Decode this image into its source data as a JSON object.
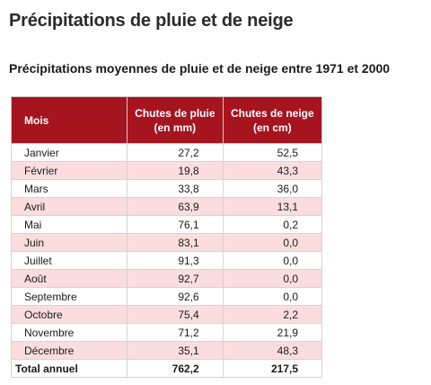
{
  "page": {
    "title": "Précipitations de pluie et de neige",
    "subtitle": "Précipitations moyennes de pluie et de neige entre 1971 et 2000"
  },
  "table": {
    "headers": {
      "month": "Mois",
      "rain_line1": "Chutes de pluie",
      "rain_line2": "(en mm)",
      "snow_line1": "Chutes de neige",
      "snow_line2": "(en cm)"
    },
    "rows": [
      {
        "month": "Janvier",
        "rain": "27,2",
        "snow": "52,5"
      },
      {
        "month": "Février",
        "rain": "19,8",
        "snow": "43,3"
      },
      {
        "month": "Mars",
        "rain": "33,8",
        "snow": "36,0"
      },
      {
        "month": "Avril",
        "rain": "63,9",
        "snow": "13,1"
      },
      {
        "month": "Mai",
        "rain": "76,1",
        "snow": "0,2"
      },
      {
        "month": "Juin",
        "rain": "83,1",
        "snow": "0,0"
      },
      {
        "month": "Juillet",
        "rain": "91,3",
        "snow": "0,0"
      },
      {
        "month": "Août",
        "rain": "92,7",
        "snow": "0,0"
      },
      {
        "month": "Septembre",
        "rain": "92,6",
        "snow": "0,0"
      },
      {
        "month": "Octobre",
        "rain": "75,4",
        "snow": "2,2"
      },
      {
        "month": "Novembre",
        "rain": "71,2",
        "snow": "21,9"
      },
      {
        "month": "Décembre",
        "rain": "35,1",
        "snow": "48,3"
      }
    ],
    "total": {
      "label": "Total annuel",
      "rain": "762,2",
      "snow": "217,5"
    }
  },
  "colors": {
    "header_bg": "#a5141f",
    "row_alt_bg": "#fbdde0"
  }
}
